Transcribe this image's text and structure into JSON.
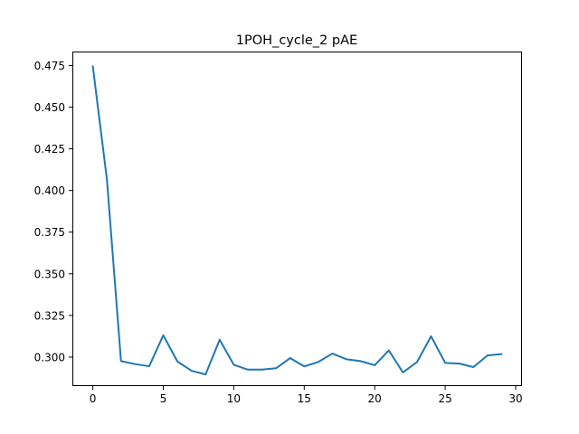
{
  "chart_data": {
    "type": "line",
    "title": "1POH_cycle_2 pAE",
    "xlabel": "",
    "ylabel": "",
    "xlim": [
      -1.45,
      30.45
    ],
    "ylim": [
      0.2826,
      0.4834
    ],
    "xticks": [
      0,
      5,
      10,
      15,
      20,
      25,
      30
    ],
    "yticks": [
      0.3,
      0.325,
      0.35,
      0.375,
      0.4,
      0.425,
      0.45,
      0.475
    ],
    "yticklabels": [
      "0.300",
      "0.325",
      "0.350",
      "0.375",
      "0.400",
      "0.425",
      "0.450",
      "0.475"
    ],
    "grid": false,
    "series": [
      {
        "color": "#1f77b4",
        "x": [
          0,
          1,
          2,
          3,
          4,
          5,
          6,
          7,
          8,
          9,
          10,
          11,
          12,
          13,
          14,
          15,
          16,
          17,
          18,
          19,
          20,
          21,
          22,
          23,
          24,
          25,
          26,
          27,
          28,
          29
        ],
        "values": [
          0.4746,
          0.4067,
          0.2976,
          0.2958,
          0.2945,
          0.3131,
          0.2974,
          0.2918,
          0.2896,
          0.3104,
          0.2954,
          0.2925,
          0.2925,
          0.2933,
          0.2994,
          0.2944,
          0.2971,
          0.3021,
          0.2987,
          0.2976,
          0.2951,
          0.304,
          0.2908,
          0.297,
          0.3125,
          0.2965,
          0.2961,
          0.294,
          0.301,
          0.3018
        ]
      }
    ]
  }
}
